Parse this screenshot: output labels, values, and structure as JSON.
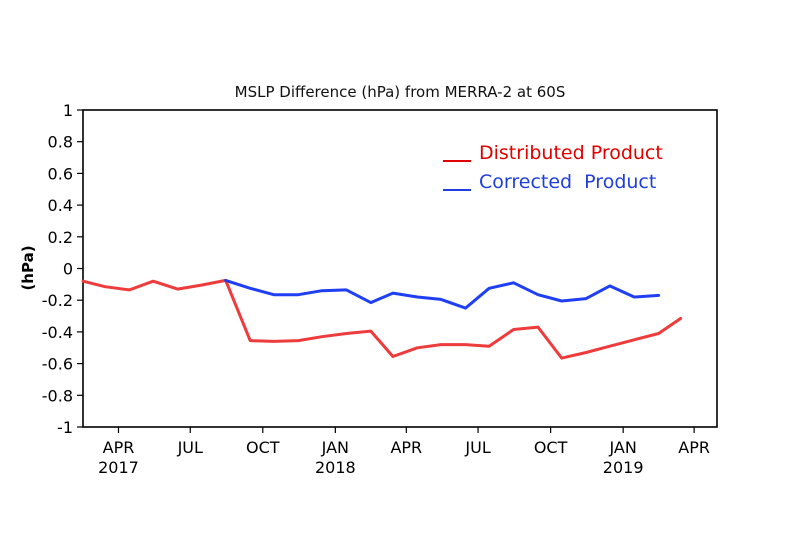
{
  "chart_data": {
    "type": "line",
    "title": "MSLP Difference (hPa) from MERRA-2 at 60S",
    "xlabel": "",
    "ylabel": "(hPa)",
    "ylim": [
      -1,
      1
    ],
    "yticks": [
      1,
      0.8,
      0.6,
      0.4,
      0.2,
      0,
      -0.2,
      -0.4,
      -0.6,
      -0.8,
      -1
    ],
    "ytick_labels": [
      "1",
      "0.8",
      "0.6",
      "0.4",
      "0.2",
      "0",
      "-0.2",
      "-0.4",
      "-0.6",
      "-0.8",
      "-1"
    ],
    "xlim": [
      "2017-02-15",
      "2019-04-30"
    ],
    "xticks": [
      {
        "date": "2017-04-01",
        "label": "APR",
        "year": "2017"
      },
      {
        "date": "2017-07-01",
        "label": "JUL",
        "year": ""
      },
      {
        "date": "2017-10-01",
        "label": "OCT",
        "year": ""
      },
      {
        "date": "2018-01-01",
        "label": "JAN",
        "year": "2018"
      },
      {
        "date": "2018-04-01",
        "label": "APR",
        "year": ""
      },
      {
        "date": "2018-07-01",
        "label": "JUL",
        "year": ""
      },
      {
        "date": "2018-10-01",
        "label": "OCT",
        "year": ""
      },
      {
        "date": "2019-01-01",
        "label": "JAN",
        "year": "2019"
      },
      {
        "date": "2019-04-01",
        "label": "APR",
        "year": ""
      }
    ],
    "grid": false,
    "legend_position": "top-right",
    "series": [
      {
        "name": "Distributed Product",
        "color": "#ee3b3b",
        "legend_color": "#e00000",
        "points": [
          [
            "2017-02-15",
            -0.08
          ],
          [
            "2017-03-15",
            -0.115
          ],
          [
            "2017-04-15",
            -0.135
          ],
          [
            "2017-05-15",
            -0.08
          ],
          [
            "2017-06-15",
            -0.13
          ],
          [
            "2017-07-15",
            -0.105
          ],
          [
            "2017-08-15",
            -0.075
          ],
          [
            "2017-09-15",
            -0.455
          ],
          [
            "2017-10-15",
            -0.46
          ],
          [
            "2017-11-15",
            -0.455
          ],
          [
            "2017-12-15",
            -0.43
          ],
          [
            "2018-01-15",
            -0.41
          ],
          [
            "2018-02-15",
            -0.395
          ],
          [
            "2018-03-15",
            -0.555
          ],
          [
            "2018-04-15",
            -0.5
          ],
          [
            "2018-05-15",
            -0.48
          ],
          [
            "2018-06-15",
            -0.48
          ],
          [
            "2018-07-15",
            -0.49
          ],
          [
            "2018-08-15",
            -0.385
          ],
          [
            "2018-09-15",
            -0.37
          ],
          [
            "2018-10-15",
            -0.565
          ],
          [
            "2018-11-15",
            -0.53
          ],
          [
            "2018-12-15",
            -0.49
          ],
          [
            "2019-01-15",
            -0.45
          ],
          [
            "2019-02-15",
            -0.41
          ],
          [
            "2019-03-15",
            -0.315
          ]
        ]
      },
      {
        "name": "Corrected  Product",
        "color": "#1f3ff5",
        "legend_color": "#1f3fdc",
        "points": [
          [
            "2017-08-15",
            -0.075
          ],
          [
            "2017-09-15",
            -0.125
          ],
          [
            "2017-10-15",
            -0.165
          ],
          [
            "2017-11-15",
            -0.165
          ],
          [
            "2017-12-15",
            -0.14
          ],
          [
            "2018-01-15",
            -0.135
          ],
          [
            "2018-02-15",
            -0.215
          ],
          [
            "2018-03-15",
            -0.155
          ],
          [
            "2018-04-15",
            -0.18
          ],
          [
            "2018-05-15",
            -0.195
          ],
          [
            "2018-06-15",
            -0.25
          ],
          [
            "2018-07-15",
            -0.125
          ],
          [
            "2018-08-15",
            -0.09
          ],
          [
            "2018-09-15",
            -0.165
          ],
          [
            "2018-10-15",
            -0.205
          ],
          [
            "2018-11-15",
            -0.19
          ],
          [
            "2018-12-15",
            -0.11
          ],
          [
            "2019-01-15",
            -0.18
          ],
          [
            "2019-02-15",
            -0.17
          ]
        ]
      }
    ]
  }
}
